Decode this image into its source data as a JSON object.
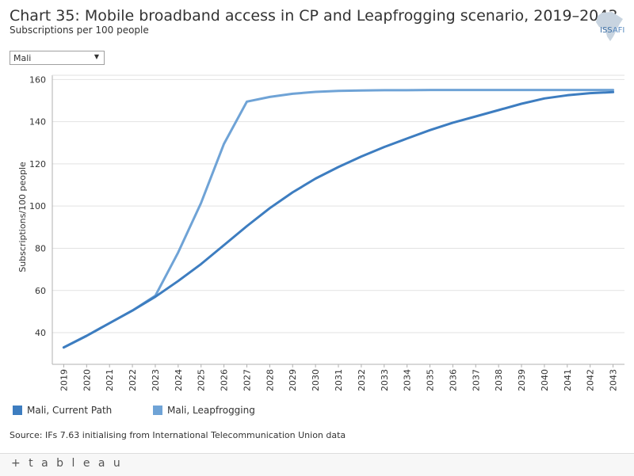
{
  "header": {
    "title": "Chart 35: Mobile broadband access in CP and Leapfrogging scenario, 2019–2043",
    "subtitle": "Subscriptions per 100 people",
    "logo_text": "ISS",
    "logo_sub": "AFI"
  },
  "filter": {
    "selected": "Mali"
  },
  "colors": {
    "current": "#3d7dc0",
    "leapfrog": "#6fa3d6",
    "grid": "#e2e2e2",
    "axis": "#b0b0b0"
  },
  "chart_data": {
    "type": "line",
    "title": "Chart 35: Mobile broadband access in CP and Leapfrogging scenario, 2019–2043",
    "xlabel": "",
    "ylabel": "Subscriptions/100 people",
    "ylim": [
      25,
      162
    ],
    "yticks": [
      40,
      60,
      80,
      100,
      120,
      140,
      160
    ],
    "x": [
      2019,
      2020,
      2021,
      2022,
      2023,
      2024,
      2025,
      2026,
      2027,
      2028,
      2029,
      2030,
      2031,
      2032,
      2033,
      2034,
      2035,
      2036,
      2037,
      2038,
      2039,
      2040,
      2041,
      2042,
      2043
    ],
    "series": [
      {
        "name": "Mali, Current Path",
        "values": [
          33,
          38.5,
          44.5,
          50.5,
          57,
          64.5,
          72.5,
          81.5,
          90.5,
          99,
          106.5,
          113,
          118.5,
          123.5,
          128,
          132,
          136,
          139.5,
          142.5,
          145.5,
          148.5,
          151,
          152.5,
          153.5,
          154
        ]
      },
      {
        "name": "Mali, Leapfrogging",
        "values": [
          33,
          38.5,
          44.5,
          50.5,
          57.5,
          78,
          101.5,
          129.5,
          149.5,
          151.7,
          153.2,
          154.1,
          154.6,
          154.8,
          154.9,
          154.9,
          155,
          155,
          155,
          155,
          155,
          155,
          155,
          155,
          155
        ]
      }
    ]
  },
  "legend": [
    {
      "label": "Mali, Current Path"
    },
    {
      "label": "Mali, Leapfrogging"
    }
  ],
  "source": "Source: IFs 7.63 initialising from International Telecommunication Union data",
  "footer": {
    "brand": "+ t a b l e a u"
  }
}
